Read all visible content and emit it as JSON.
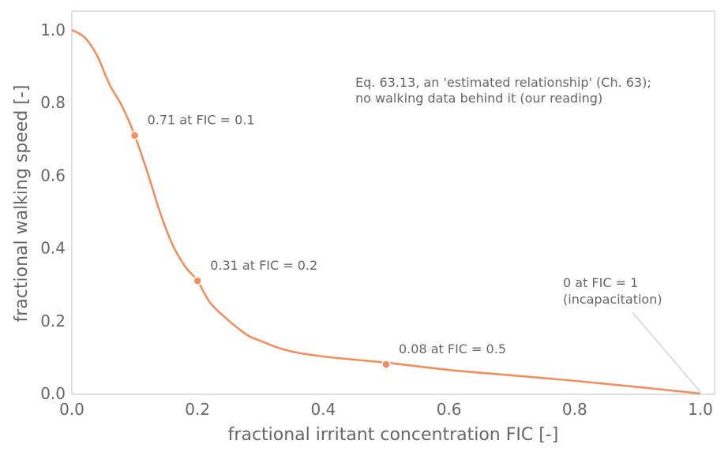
{
  "chart_data": {
    "type": "line",
    "xlabel": "fractional irritant concentration FIC [-]",
    "ylabel": "fractional walking speed [-]",
    "xlim": [
      0.0,
      1.0
    ],
    "ylim": [
      0.0,
      1.0
    ],
    "x_ticks": [
      "0.0",
      "0.2",
      "0.4",
      "0.6",
      "0.8",
      "1.0"
    ],
    "y_ticks": [
      "0.0",
      "0.2",
      "0.4",
      "0.6",
      "0.8",
      "1.0"
    ],
    "grid": false,
    "series": [
      {
        "color": "#f28e5b",
        "x": [
          0.0,
          0.02,
          0.04,
          0.06,
          0.08,
          0.1,
          0.12,
          0.14,
          0.16,
          0.18,
          0.2,
          0.22,
          0.25,
          0.28,
          0.3,
          0.33,
          0.36,
          0.4,
          0.45,
          0.5,
          0.6,
          0.7,
          0.8,
          0.9,
          1.0
        ],
        "y": [
          1.0,
          0.98,
          0.93,
          0.85,
          0.79,
          0.71,
          0.61,
          0.5,
          0.41,
          0.35,
          0.31,
          0.25,
          0.2,
          0.16,
          0.145,
          0.125,
          0.112,
          0.102,
          0.093,
          0.085,
          0.065,
          0.05,
          0.035,
          0.018,
          0.0
        ]
      }
    ],
    "markers": [
      {
        "x": 0.1,
        "y": 0.71,
        "label": "0.71 at FIC = 0.1"
      },
      {
        "x": 0.2,
        "y": 0.31,
        "label": "0.31 at FIC = 0.2"
      },
      {
        "x": 0.5,
        "y": 0.08,
        "label": "0.08 at FIC = 0.5"
      }
    ],
    "endpoint_annotation": {
      "x": 1.0,
      "y": 0.0,
      "lines": [
        "0 at FIC = 1",
        "(incapacitation)"
      ]
    },
    "note": {
      "lines": [
        "Eq. 63.13, an 'estimated relationship' (Ch. 63);",
        "no walking data behind it (our reading)"
      ]
    }
  }
}
